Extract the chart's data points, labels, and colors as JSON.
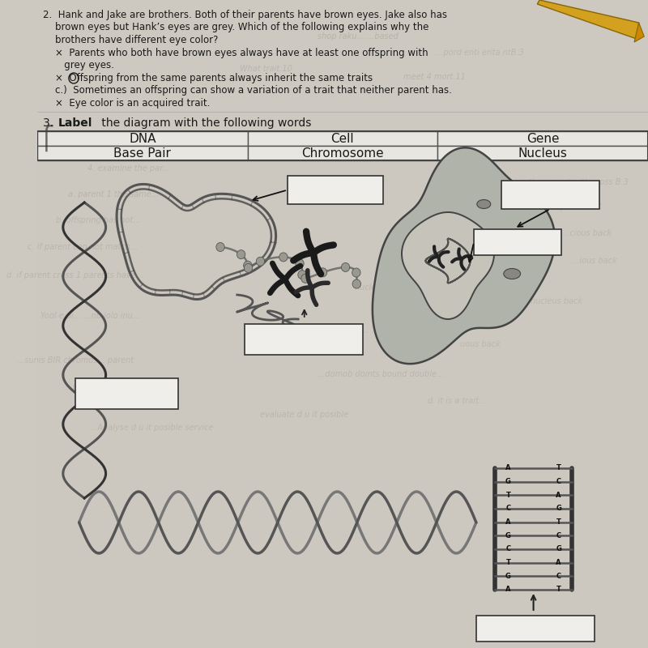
{
  "bg_color": "#cdc9c0",
  "paper_color": "#d4d0c8",
  "text_color": "#1a1a1a",
  "table_line_color": "#555555",
  "box_fill": "#e8e6e0",
  "label_box_fill": "#f0eeea",
  "label_box_edge": "#333333",
  "q2_lines": [
    "2.  Hank and Jake are brothers. Both of their parents have brown eyes. Jake also has",
    "    brown eyes but Hank's eyes are grey. Which of the following explains why the",
    "    brothers have different eye color?",
    "    ×  Parents who both have brown eyes always have at least one offspring with",
    "       grey eyes.",
    "    ×  Offspring from the same parents always inherit the same traits",
    "    c.  Sometimes an offspring can show a variation of a trait that neither parent has.",
    "    ×  Eye color is an acquired trait."
  ],
  "q3_label": "3.",
  "q3_bold": "Label",
  "q3_rest": " the diagram with the following words",
  "word_bank": [
    [
      "DNA",
      "Cell",
      "Gene"
    ],
    [
      "Base Pair",
      "Chromosome",
      "Nucleus"
    ]
  ],
  "col_boundaries": [
    0.02,
    0.345,
    0.655,
    0.98
  ],
  "pencil_color": "#e8a020"
}
